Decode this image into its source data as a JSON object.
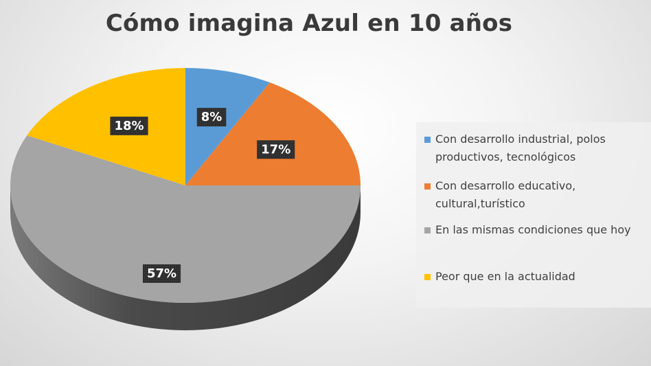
{
  "chart_data": {
    "type": "pie",
    "title": "Cómo imagina Azul en 10 años",
    "legend_position": "right",
    "series": [
      {
        "label": "Con desarrollo industrial, polos productivos, tecnológicos",
        "value": 8,
        "display": "8%",
        "color": "#5B9BD5"
      },
      {
        "label": "Con desarrollo educativo, cultural,turístico",
        "value": 17,
        "display": "17%",
        "color": "#ED7D31"
      },
      {
        "label": "En las mismas condiciones que hoy",
        "value": 57,
        "display": "57%",
        "color": "#A5A5A5"
      },
      {
        "label": "Peor que en la actualidad",
        "value": 18,
        "display": "18%",
        "color": "#FFC000"
      }
    ]
  }
}
